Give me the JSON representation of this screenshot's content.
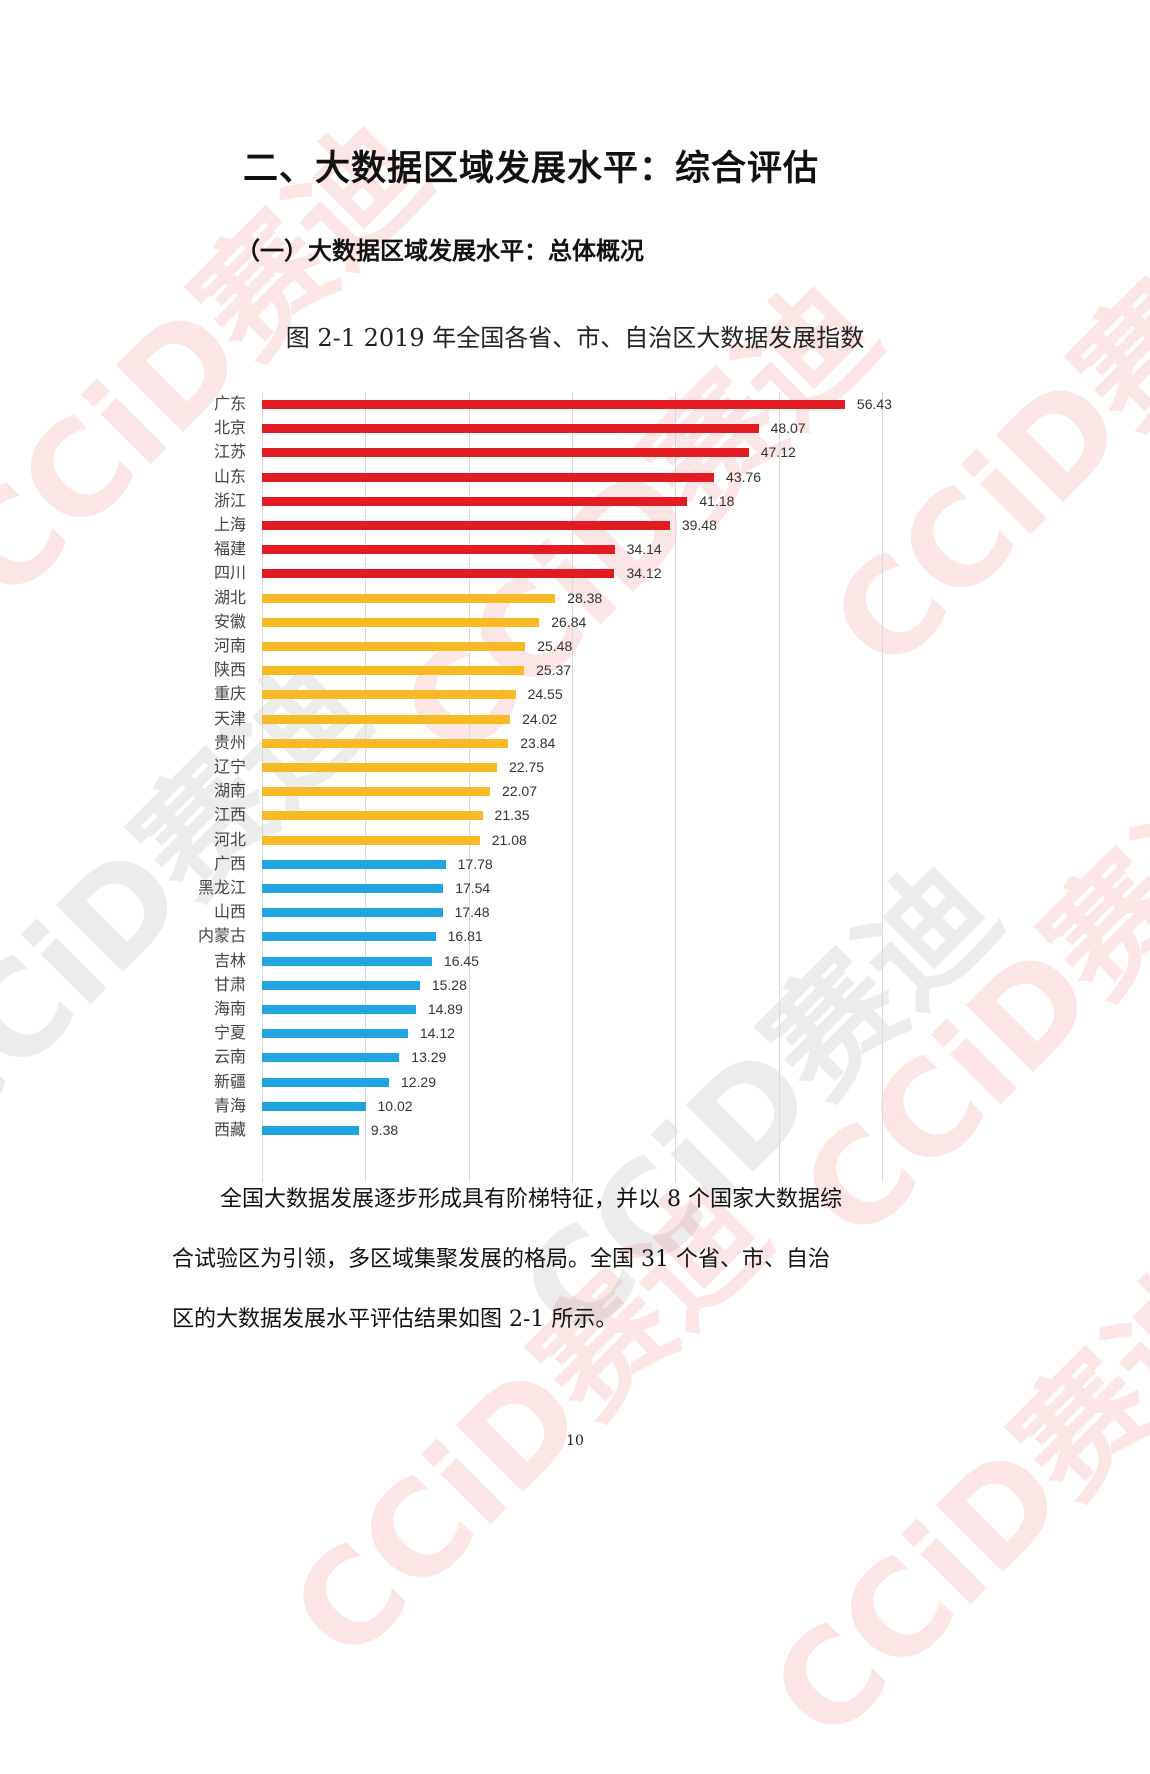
{
  "document": {
    "section_title": "二、大数据区域发展水平：综合评估",
    "subsection_title": "（一）大数据区域发展水平：总体概况",
    "figure_caption": "图 2-1 2019 年全国各省、市、自治区大数据发展指数",
    "paragraph_line1": "全国大数据发展逐步形成具有阶梯特征，并以 8 个国家大数据综",
    "paragraph_line2": "合试验区为引领，多区域集聚发展的格局。全国 31 个省、市、自治",
    "paragraph_line3": "区的大数据发展水平评估结果如图 2-1 所示。",
    "page_number": "10",
    "watermark_text": "CCiD赛迪"
  },
  "chart_data": {
    "type": "bar",
    "orientation": "horizontal",
    "title": "图 2-1 2019 年全国各省、市、自治区大数据发展指数",
    "xlabel": "",
    "ylabel": "",
    "xlim": [
      0,
      60
    ],
    "grid": true,
    "gridlines_x": [
      0,
      10,
      20,
      30,
      40,
      50,
      60
    ],
    "tick_labels_shown": false,
    "legend": null,
    "tier_colors": {
      "tier1": "#e31b23",
      "tier2": "#f7b924",
      "tier3": "#1fa6e0"
    },
    "categories": [
      "广东",
      "北京",
      "江苏",
      "山东",
      "浙江",
      "上海",
      "福建",
      "四川",
      "湖北",
      "安徽",
      "河南",
      "陕西",
      "重庆",
      "天津",
      "贵州",
      "辽宁",
      "湖南",
      "江西",
      "河北",
      "广西",
      "黑龙江",
      "山西",
      "内蒙古",
      "吉林",
      "甘肃",
      "海南",
      "宁夏",
      "云南",
      "新疆",
      "青海",
      "西藏"
    ],
    "values": [
      56.43,
      48.07,
      47.12,
      43.76,
      41.18,
      39.48,
      34.14,
      34.12,
      28.38,
      26.84,
      25.48,
      25.37,
      24.55,
      24.02,
      23.84,
      22.75,
      22.07,
      21.35,
      21.08,
      17.78,
      17.54,
      17.48,
      16.81,
      16.45,
      15.28,
      14.89,
      14.12,
      13.29,
      12.29,
      10.02,
      9.38
    ],
    "value_labels": [
      "56.43",
      "48.07",
      "47.12",
      "43.76",
      "41.18",
      "39.48",
      "34.14",
      "34.12",
      "28.38",
      "26.84",
      "25.48",
      "25.37",
      "24.55",
      "24.02",
      "23.84",
      "22.75",
      "22.07",
      "21.35",
      "21.08",
      "17.78",
      "17.54",
      "17.48",
      "16.81",
      "16.45",
      "15.28",
      "14.89",
      "14.12",
      "13.29",
      "12.29",
      "10.02",
      "9.38"
    ],
    "tiers": [
      1,
      1,
      1,
      1,
      1,
      1,
      1,
      1,
      2,
      2,
      2,
      2,
      2,
      2,
      2,
      2,
      2,
      2,
      2,
      3,
      3,
      3,
      3,
      3,
      3,
      3,
      3,
      3,
      3,
      3,
      3
    ]
  }
}
